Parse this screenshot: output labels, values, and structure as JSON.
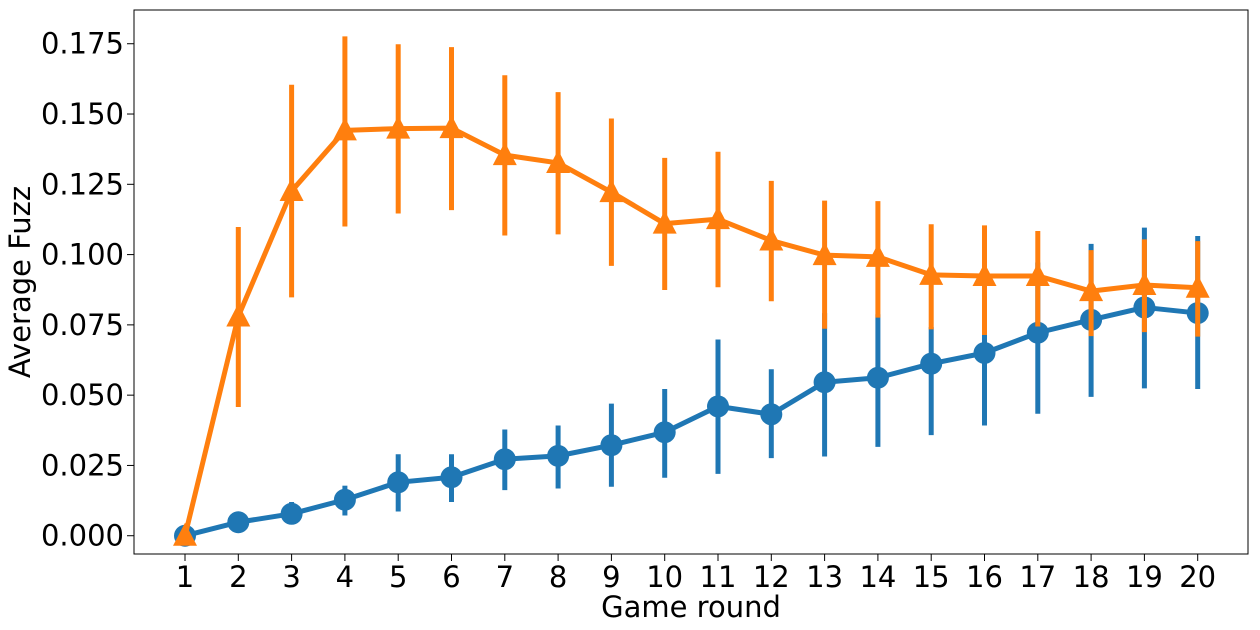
{
  "chart_data": {
    "type": "line",
    "xlabel": "Game round",
    "ylabel": "Average Fuzz",
    "categories": [
      "1",
      "2",
      "3",
      "4",
      "5",
      "6",
      "7",
      "8",
      "9",
      "10",
      "11",
      "12",
      "13",
      "14",
      "15",
      "16",
      "17",
      "18",
      "19",
      "20"
    ],
    "ylim": [
      -0.0065,
      0.187
    ],
    "yticks": [
      0.0,
      0.025,
      0.05,
      0.075,
      0.1,
      0.125,
      0.15,
      0.175
    ],
    "ytick_labels": [
      "0.000",
      "0.025",
      "0.050",
      "0.075",
      "0.100",
      "0.125",
      "0.150",
      "0.175"
    ],
    "grid": false,
    "legend": "none",
    "series": [
      {
        "color": "#1f77b4",
        "marker": "circle",
        "values": [
          0.0,
          0.0048,
          0.0078,
          0.0128,
          0.019,
          0.0208,
          0.0272,
          0.0284,
          0.0322,
          0.0368,
          0.046,
          0.0432,
          0.0546,
          0.0562,
          0.0612,
          0.065,
          0.0722,
          0.0768,
          0.0812,
          0.0792
        ],
        "err_low": [
          0.0,
          0.0048,
          0.004,
          0.0072,
          0.0086,
          0.012,
          0.0162,
          0.0168,
          0.0174,
          0.0206,
          0.022,
          0.0276,
          0.0282,
          0.0316,
          0.0358,
          0.0392,
          0.0434,
          0.0494,
          0.0524,
          0.0522
        ],
        "err_high": [
          0.0,
          0.0048,
          0.012,
          0.0178,
          0.029,
          0.029,
          0.0378,
          0.0392,
          0.047,
          0.0522,
          0.0698,
          0.0592,
          0.0792,
          0.0788,
          0.0742,
          0.0732,
          0.0972,
          0.1038,
          0.1096,
          0.1066
        ]
      },
      {
        "color": "#ff7f0e",
        "marker": "triangle",
        "values": [
          0.0,
          0.078,
          0.1226,
          0.1442,
          0.1448,
          0.145,
          0.1354,
          0.1326,
          0.1222,
          0.111,
          0.1126,
          0.105,
          0.0998,
          0.0992,
          0.0928,
          0.0924,
          0.0924,
          0.087,
          0.0892,
          0.0882
        ],
        "err_low": [
          0.0,
          0.0458,
          0.0848,
          0.11,
          0.1146,
          0.1158,
          0.1068,
          0.1072,
          0.096,
          0.0874,
          0.0884,
          0.0834,
          0.0736,
          0.0776,
          0.0734,
          0.0714,
          0.0744,
          0.071,
          0.0724,
          0.0708
        ],
        "err_high": [
          0.0,
          0.1098,
          0.1604,
          0.1776,
          0.1748,
          0.1738,
          0.1638,
          0.1578,
          0.1484,
          0.1344,
          0.1366,
          0.1262,
          0.1192,
          0.119,
          0.1108,
          0.1104,
          0.1084,
          0.1016,
          0.1054,
          0.1048
        ]
      }
    ]
  }
}
